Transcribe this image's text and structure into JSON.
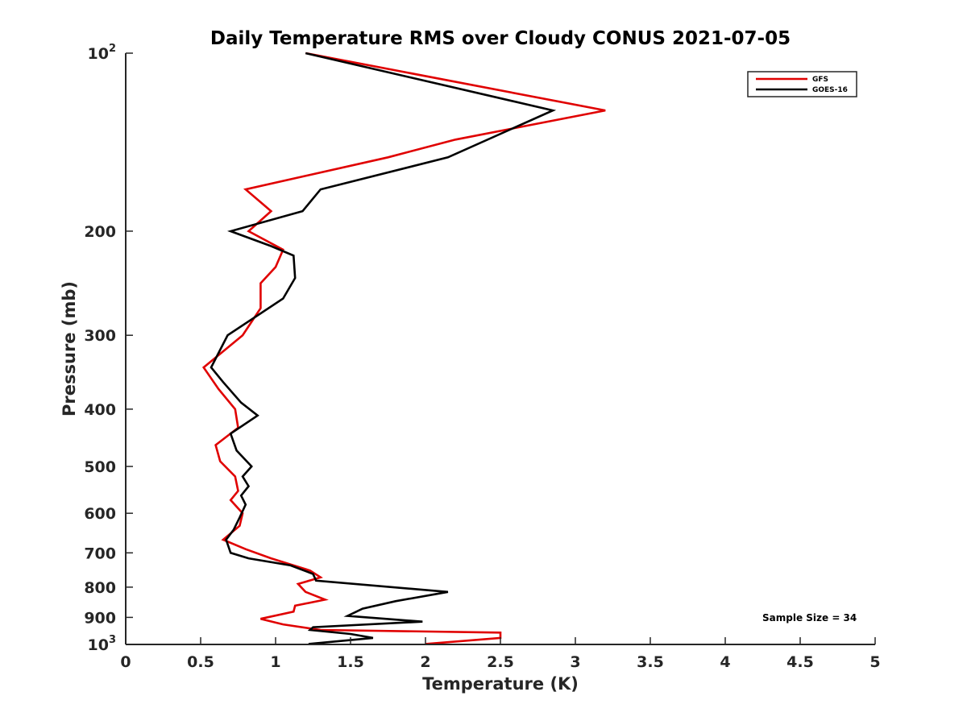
{
  "chart_data": {
    "type": "line",
    "title": "Daily Temperature RMS over Cloudy CONUS 2021-07-05",
    "xlabel": "Temperature (K)",
    "ylabel": "Pressure (mb)",
    "xlim": [
      0,
      5
    ],
    "ylim": [
      100,
      1000
    ],
    "y_scale": "log",
    "y_reversed": true,
    "x_ticks": [
      0,
      0.5,
      1,
      1.5,
      2,
      2.5,
      3,
      3.5,
      4,
      4.5,
      5
    ],
    "x_tick_labels": [
      "0",
      "0.5",
      "1",
      "1.5",
      "2",
      "2.5",
      "3",
      "3.5",
      "4",
      "4.5",
      "5"
    ],
    "y_ticks": [
      100,
      200,
      300,
      400,
      500,
      600,
      700,
      800,
      900,
      1000
    ],
    "y_tick_labels": [
      {
        "base": "10",
        "sup": "2"
      },
      {
        "base": "200",
        "sup": ""
      },
      {
        "base": "300",
        "sup": ""
      },
      {
        "base": "400",
        "sup": ""
      },
      {
        "base": "500",
        "sup": ""
      },
      {
        "base": "600",
        "sup": ""
      },
      {
        "base": "700",
        "sup": ""
      },
      {
        "base": "800",
        "sup": ""
      },
      {
        "base": "900",
        "sup": ""
      },
      {
        "base": "10",
        "sup": "3"
      }
    ],
    "grid": false,
    "legend_position": "top-right",
    "series": [
      {
        "name": "GFS",
        "color": "#e00000",
        "points": [
          [
            1.2,
            100
          ],
          [
            3.2,
            125
          ],
          [
            2.2,
            140
          ],
          [
            1.75,
            150
          ],
          [
            0.8,
            170
          ],
          [
            0.97,
            185
          ],
          [
            0.82,
            200
          ],
          [
            1.05,
            215
          ],
          [
            1.0,
            230
          ],
          [
            0.9,
            245
          ],
          [
            0.9,
            270
          ],
          [
            0.78,
            300
          ],
          [
            0.52,
            340
          ],
          [
            0.62,
            370
          ],
          [
            0.73,
            400
          ],
          [
            0.75,
            430
          ],
          [
            0.6,
            460
          ],
          [
            0.63,
            490
          ],
          [
            0.73,
            520
          ],
          [
            0.75,
            550
          ],
          [
            0.7,
            570
          ],
          [
            0.78,
            600
          ],
          [
            0.76,
            630
          ],
          [
            0.65,
            665
          ],
          [
            0.8,
            690
          ],
          [
            0.97,
            715
          ],
          [
            1.23,
            750
          ],
          [
            1.3,
            770
          ],
          [
            1.15,
            790
          ],
          [
            1.2,
            815
          ],
          [
            1.33,
            840
          ],
          [
            1.13,
            860
          ],
          [
            1.12,
            880
          ],
          [
            0.9,
            905
          ],
          [
            1.05,
            925
          ],
          [
            1.3,
            945
          ],
          [
            2.5,
            955
          ],
          [
            2.5,
            975
          ],
          [
            2.0,
            998
          ]
        ]
      },
      {
        "name": "GOES-16",
        "color": "#000000",
        "points": [
          [
            1.2,
            100
          ],
          [
            2.85,
            125
          ],
          [
            2.15,
            150
          ],
          [
            1.3,
            170
          ],
          [
            1.18,
            185
          ],
          [
            0.7,
            200
          ],
          [
            0.97,
            212
          ],
          [
            1.12,
            220
          ],
          [
            1.13,
            240
          ],
          [
            1.05,
            260
          ],
          [
            0.68,
            300
          ],
          [
            0.57,
            340
          ],
          [
            0.65,
            360
          ],
          [
            0.77,
            390
          ],
          [
            0.88,
            410
          ],
          [
            0.7,
            440
          ],
          [
            0.74,
            470
          ],
          [
            0.84,
            500
          ],
          [
            0.78,
            520
          ],
          [
            0.82,
            540
          ],
          [
            0.77,
            560
          ],
          [
            0.8,
            580
          ],
          [
            0.76,
            610
          ],
          [
            0.72,
            640
          ],
          [
            0.67,
            665
          ],
          [
            0.7,
            700
          ],
          [
            0.82,
            715
          ],
          [
            1.1,
            735
          ],
          [
            1.25,
            760
          ],
          [
            1.27,
            780
          ],
          [
            2.15,
            815
          ],
          [
            1.8,
            845
          ],
          [
            1.58,
            870
          ],
          [
            1.48,
            895
          ],
          [
            1.98,
            915
          ],
          [
            1.25,
            935
          ],
          [
            1.23,
            945
          ],
          [
            1.5,
            960
          ],
          [
            1.65,
            975
          ],
          [
            1.22,
            998
          ]
        ]
      }
    ],
    "annotation": "Sample Size = 34"
  }
}
